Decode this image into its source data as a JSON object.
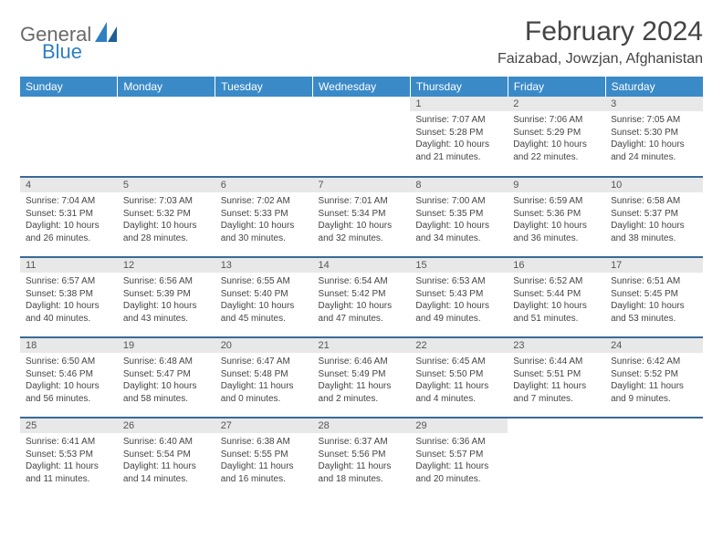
{
  "brand": {
    "part1": "General",
    "part2": "Blue"
  },
  "title": "February 2024",
  "location": "Faizabad, Jowzjan, Afghanistan",
  "colors": {
    "header_bg": "#3a8ac8",
    "header_text": "#ffffff",
    "row_border": "#3a6a96",
    "daynum_bg": "#e8e8e8",
    "body_text": "#444444",
    "logo_gray": "#6a6a6a",
    "logo_blue": "#2f7fc2"
  },
  "fonts": {
    "title_size": 30,
    "subtitle_size": 16,
    "dayhead_size": 12,
    "cell_size": 10
  },
  "day_headers": [
    "Sunday",
    "Monday",
    "Tuesday",
    "Wednesday",
    "Thursday",
    "Friday",
    "Saturday"
  ],
  "weeks": [
    [
      {
        "empty": true
      },
      {
        "empty": true
      },
      {
        "empty": true
      },
      {
        "empty": true
      },
      {
        "n": "1",
        "sunrise": "7:07 AM",
        "sunset": "5:28 PM",
        "daylight": "10 hours and 21 minutes."
      },
      {
        "n": "2",
        "sunrise": "7:06 AM",
        "sunset": "5:29 PM",
        "daylight": "10 hours and 22 minutes."
      },
      {
        "n": "3",
        "sunrise": "7:05 AM",
        "sunset": "5:30 PM",
        "daylight": "10 hours and 24 minutes."
      }
    ],
    [
      {
        "n": "4",
        "sunrise": "7:04 AM",
        "sunset": "5:31 PM",
        "daylight": "10 hours and 26 minutes."
      },
      {
        "n": "5",
        "sunrise": "7:03 AM",
        "sunset": "5:32 PM",
        "daylight": "10 hours and 28 minutes."
      },
      {
        "n": "6",
        "sunrise": "7:02 AM",
        "sunset": "5:33 PM",
        "daylight": "10 hours and 30 minutes."
      },
      {
        "n": "7",
        "sunrise": "7:01 AM",
        "sunset": "5:34 PM",
        "daylight": "10 hours and 32 minutes."
      },
      {
        "n": "8",
        "sunrise": "7:00 AM",
        "sunset": "5:35 PM",
        "daylight": "10 hours and 34 minutes."
      },
      {
        "n": "9",
        "sunrise": "6:59 AM",
        "sunset": "5:36 PM",
        "daylight": "10 hours and 36 minutes."
      },
      {
        "n": "10",
        "sunrise": "6:58 AM",
        "sunset": "5:37 PM",
        "daylight": "10 hours and 38 minutes."
      }
    ],
    [
      {
        "n": "11",
        "sunrise": "6:57 AM",
        "sunset": "5:38 PM",
        "daylight": "10 hours and 40 minutes."
      },
      {
        "n": "12",
        "sunrise": "6:56 AM",
        "sunset": "5:39 PM",
        "daylight": "10 hours and 43 minutes."
      },
      {
        "n": "13",
        "sunrise": "6:55 AM",
        "sunset": "5:40 PM",
        "daylight": "10 hours and 45 minutes."
      },
      {
        "n": "14",
        "sunrise": "6:54 AM",
        "sunset": "5:42 PM",
        "daylight": "10 hours and 47 minutes."
      },
      {
        "n": "15",
        "sunrise": "6:53 AM",
        "sunset": "5:43 PM",
        "daylight": "10 hours and 49 minutes."
      },
      {
        "n": "16",
        "sunrise": "6:52 AM",
        "sunset": "5:44 PM",
        "daylight": "10 hours and 51 minutes."
      },
      {
        "n": "17",
        "sunrise": "6:51 AM",
        "sunset": "5:45 PM",
        "daylight": "10 hours and 53 minutes."
      }
    ],
    [
      {
        "n": "18",
        "sunrise": "6:50 AM",
        "sunset": "5:46 PM",
        "daylight": "10 hours and 56 minutes."
      },
      {
        "n": "19",
        "sunrise": "6:48 AM",
        "sunset": "5:47 PM",
        "daylight": "10 hours and 58 minutes."
      },
      {
        "n": "20",
        "sunrise": "6:47 AM",
        "sunset": "5:48 PM",
        "daylight": "11 hours and 0 minutes."
      },
      {
        "n": "21",
        "sunrise": "6:46 AM",
        "sunset": "5:49 PM",
        "daylight": "11 hours and 2 minutes."
      },
      {
        "n": "22",
        "sunrise": "6:45 AM",
        "sunset": "5:50 PM",
        "daylight": "11 hours and 4 minutes."
      },
      {
        "n": "23",
        "sunrise": "6:44 AM",
        "sunset": "5:51 PM",
        "daylight": "11 hours and 7 minutes."
      },
      {
        "n": "24",
        "sunrise": "6:42 AM",
        "sunset": "5:52 PM",
        "daylight": "11 hours and 9 minutes."
      }
    ],
    [
      {
        "n": "25",
        "sunrise": "6:41 AM",
        "sunset": "5:53 PM",
        "daylight": "11 hours and 11 minutes."
      },
      {
        "n": "26",
        "sunrise": "6:40 AM",
        "sunset": "5:54 PM",
        "daylight": "11 hours and 14 minutes."
      },
      {
        "n": "27",
        "sunrise": "6:38 AM",
        "sunset": "5:55 PM",
        "daylight": "11 hours and 16 minutes."
      },
      {
        "n": "28",
        "sunrise": "6:37 AM",
        "sunset": "5:56 PM",
        "daylight": "11 hours and 18 minutes."
      },
      {
        "n": "29",
        "sunrise": "6:36 AM",
        "sunset": "5:57 PM",
        "daylight": "11 hours and 20 minutes."
      },
      {
        "empty": true
      },
      {
        "empty": true
      }
    ]
  ],
  "labels": {
    "sunrise": "Sunrise:",
    "sunset": "Sunset:",
    "daylight": "Daylight:"
  }
}
